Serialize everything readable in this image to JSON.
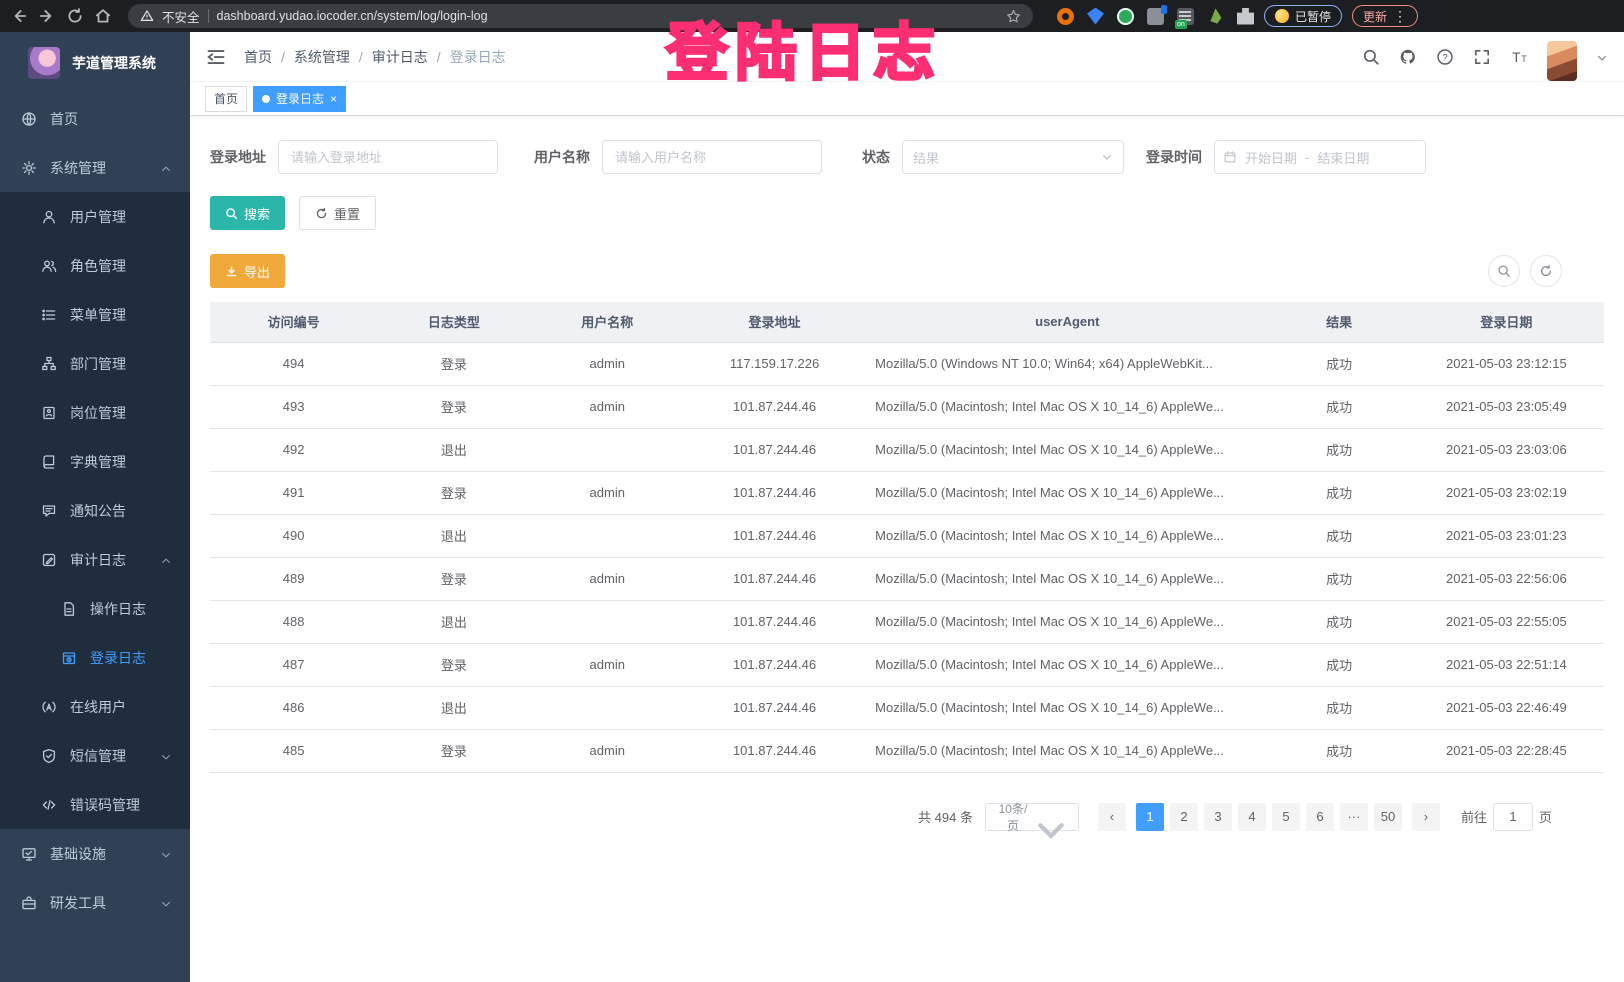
{
  "colors": {
    "accent": "#409eff",
    "search_button": "#2ab7a9",
    "export_button": "#f0a93a",
    "annotation_pink": "#fb2e74",
    "sidebar_bg": "#304156",
    "submenu_bg": "#1f2d3d"
  },
  "browser": {
    "security_label": "不安全",
    "url": "dashboard.yudao.iocoder.cn/system/log/login-log",
    "extension_badge": "on",
    "paused_chip": "已暂停",
    "update_chip": "更新"
  },
  "annotation": {
    "text": "登陆日志"
  },
  "sidebar": {
    "title": "芋道管理系统",
    "items": [
      {
        "label": "首页",
        "icon": "dashboard-icon",
        "level": 1
      },
      {
        "label": "系统管理",
        "icon": "gear-icon",
        "level": 1,
        "arrow": "up"
      },
      {
        "label": "用户管理",
        "icon": "user-icon",
        "level": 2
      },
      {
        "label": "角色管理",
        "icon": "role-icon",
        "level": 2
      },
      {
        "label": "菜单管理",
        "icon": "menu-list-icon",
        "level": 2
      },
      {
        "label": "部门管理",
        "icon": "org-tree-icon",
        "level": 2
      },
      {
        "label": "岗位管理",
        "icon": "post-icon",
        "level": 2
      },
      {
        "label": "字典管理",
        "icon": "dict-icon",
        "level": 2
      },
      {
        "label": "通知公告",
        "icon": "announcement-icon",
        "level": 2
      },
      {
        "label": "审计日志",
        "icon": "audit-log-icon",
        "level": 2,
        "arrow": "up"
      },
      {
        "label": "操作日志",
        "icon": "operation-log-icon",
        "level": 3
      },
      {
        "label": "登录日志",
        "icon": "login-log-icon",
        "level": 3,
        "active": true
      },
      {
        "label": "在线用户",
        "icon": "online-user-icon",
        "level": 2
      },
      {
        "label": "短信管理",
        "icon": "sms-icon",
        "level": 2,
        "arrow": "down"
      },
      {
        "label": "错误码管理",
        "icon": "error-code-icon",
        "level": 2
      },
      {
        "label": "基础设施",
        "icon": "infra-icon",
        "level": 1,
        "arrow": "down"
      },
      {
        "label": "研发工具",
        "icon": "devtools-icon",
        "level": 1,
        "arrow": "down"
      }
    ]
  },
  "header": {
    "breadcrumb": [
      {
        "label": "首页"
      },
      {
        "label": "系统管理"
      },
      {
        "label": "审计日志"
      },
      {
        "label": "登录日志",
        "muted": true
      }
    ]
  },
  "tags": [
    {
      "label": "首页",
      "active": false
    },
    {
      "label": "登录日志",
      "active": true
    }
  ],
  "filters": {
    "login_address_label": "登录地址",
    "login_address_placeholder": "请输入登录地址",
    "username_label": "用户名称",
    "username_placeholder": "请输入用户名称",
    "status_label": "状态",
    "status_placeholder": "结果",
    "login_time_label": "登录时间",
    "date_start_placeholder": "开始日期",
    "date_separator": "-",
    "date_end_placeholder": "结束日期",
    "search_label": "搜索",
    "reset_label": "重置"
  },
  "toolbar": {
    "export_label": "导出"
  },
  "table": {
    "columns": [
      "访问编号",
      "日志类型",
      "用户名称",
      "登录地址",
      "userAgent",
      "结果",
      "登录日期"
    ],
    "rows": [
      {
        "id": "494",
        "type": "登录",
        "username": "admin",
        "ip": "117.159.17.226",
        "user_agent": "Mozilla/5.0 (Windows NT 10.0; Win64; x64) AppleWebKit...",
        "result": "成功",
        "date": "2021-05-03 23:12:15"
      },
      {
        "id": "493",
        "type": "登录",
        "username": "admin",
        "ip": "101.87.244.46",
        "user_agent": "Mozilla/5.0 (Macintosh; Intel Mac OS X 10_14_6) AppleWe...",
        "result": "成功",
        "date": "2021-05-03 23:05:49"
      },
      {
        "id": "492",
        "type": "退出",
        "username": "",
        "ip": "101.87.244.46",
        "user_agent": "Mozilla/5.0 (Macintosh; Intel Mac OS X 10_14_6) AppleWe...",
        "result": "成功",
        "date": "2021-05-03 23:03:06"
      },
      {
        "id": "491",
        "type": "登录",
        "username": "admin",
        "ip": "101.87.244.46",
        "user_agent": "Mozilla/5.0 (Macintosh; Intel Mac OS X 10_14_6) AppleWe...",
        "result": "成功",
        "date": "2021-05-03 23:02:19"
      },
      {
        "id": "490",
        "type": "退出",
        "username": "",
        "ip": "101.87.244.46",
        "user_agent": "Mozilla/5.0 (Macintosh; Intel Mac OS X 10_14_6) AppleWe...",
        "result": "成功",
        "date": "2021-05-03 23:01:23"
      },
      {
        "id": "489",
        "type": "登录",
        "username": "admin",
        "ip": "101.87.244.46",
        "user_agent": "Mozilla/5.0 (Macintosh; Intel Mac OS X 10_14_6) AppleWe...",
        "result": "成功",
        "date": "2021-05-03 22:56:06"
      },
      {
        "id": "488",
        "type": "退出",
        "username": "",
        "ip": "101.87.244.46",
        "user_agent": "Mozilla/5.0 (Macintosh; Intel Mac OS X 10_14_6) AppleWe...",
        "result": "成功",
        "date": "2021-05-03 22:55:05"
      },
      {
        "id": "487",
        "type": "登录",
        "username": "admin",
        "ip": "101.87.244.46",
        "user_agent": "Mozilla/5.0 (Macintosh; Intel Mac OS X 10_14_6) AppleWe...",
        "result": "成功",
        "date": "2021-05-03 22:51:14"
      },
      {
        "id": "486",
        "type": "退出",
        "username": "",
        "ip": "101.87.244.46",
        "user_agent": "Mozilla/5.0 (Macintosh; Intel Mac OS X 10_14_6) AppleWe...",
        "result": "成功",
        "date": "2021-05-03 22:46:49"
      },
      {
        "id": "485",
        "type": "登录",
        "username": "admin",
        "ip": "101.87.244.46",
        "user_agent": "Mozilla/5.0 (Macintosh; Intel Mac OS X 10_14_6) AppleWe...",
        "result": "成功",
        "date": "2021-05-03 22:28:45"
      }
    ]
  },
  "pagination": {
    "total_label": "共 494 条",
    "page_size": "10条/页",
    "pages": [
      "1",
      "2",
      "3",
      "4",
      "5",
      "6",
      "···",
      "50"
    ],
    "current_page": "1",
    "prev_label": "‹",
    "next_label": "›",
    "goto_label": "前往",
    "goto_value": "1",
    "goto_suffix": "页"
  }
}
